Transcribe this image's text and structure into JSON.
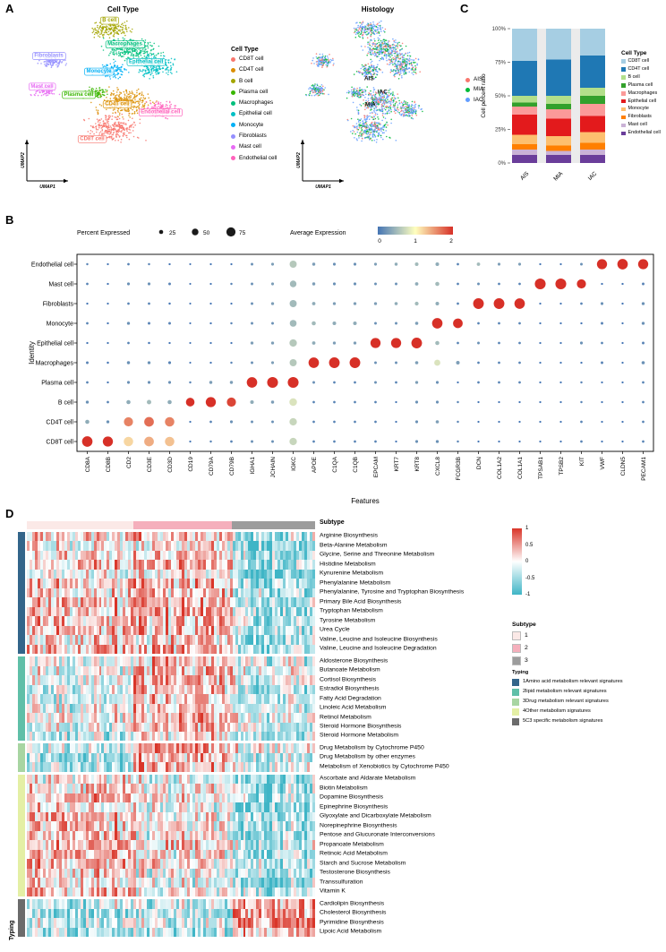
{
  "panels": {
    "a": "A",
    "b": "B",
    "c": "C",
    "d": "D"
  },
  "chart_data": [
    {
      "type": "scatter",
      "name": "umap-cell-type",
      "title": "Cell Type",
      "xlabel": "UMAP1",
      "ylabel": "UMAP2",
      "legend_title": "Cell Type",
      "clusters": [
        {
          "name": "CD8T cell",
          "color": "#F8766D",
          "cx": 0.44,
          "cy": 0.82,
          "rx": 0.13,
          "ry": 0.095,
          "n": 300,
          "lx": 0.33,
          "ly": 0.91
        },
        {
          "name": "CD4T cell",
          "color": "#DB8E00",
          "cx": 0.5,
          "cy": 0.63,
          "rx": 0.14,
          "ry": 0.1,
          "n": 320,
          "lx": 0.46,
          "ly": 0.655
        },
        {
          "name": "B cell",
          "color": "#A3A500",
          "cx": 0.42,
          "cy": 0.1,
          "rx": 0.105,
          "ry": 0.058,
          "n": 180,
          "lx": 0.42,
          "ly": 0.04
        },
        {
          "name": "Plasma cell",
          "color": "#39B600",
          "cx": 0.345,
          "cy": 0.565,
          "rx": 0.055,
          "ry": 0.04,
          "n": 90,
          "lx": 0.26,
          "ly": 0.585
        },
        {
          "name": "Macrophages",
          "color": "#00BF7D",
          "cx": 0.54,
          "cy": 0.245,
          "rx": 0.13,
          "ry": 0.088,
          "n": 310,
          "lx": 0.5,
          "ly": 0.215
        },
        {
          "name": "Epithelial cell",
          "color": "#00BFC4",
          "cx": 0.655,
          "cy": 0.37,
          "rx": 0.098,
          "ry": 0.088,
          "n": 230,
          "lx": 0.61,
          "ly": 0.345
        },
        {
          "name": "Monocyte",
          "color": "#00B0F6",
          "cx": 0.43,
          "cy": 0.4,
          "rx": 0.075,
          "ry": 0.055,
          "n": 140,
          "lx": 0.365,
          "ly": 0.415
        },
        {
          "name": "Fibroblasts",
          "color": "#9590FF",
          "cx": 0.125,
          "cy": 0.33,
          "rx": 0.065,
          "ry": 0.047,
          "n": 120,
          "lx": 0.105,
          "ly": 0.3
        },
        {
          "name": "Mast cell",
          "color": "#E76BF3",
          "cx": 0.085,
          "cy": 0.54,
          "rx": 0.06,
          "ry": 0.045,
          "n": 110,
          "lx": 0.07,
          "ly": 0.525
        },
        {
          "name": "Endothelial cell",
          "color": "#FF62BC",
          "cx": 0.69,
          "cy": 0.685,
          "rx": 0.082,
          "ry": 0.058,
          "n": 150,
          "lx": 0.685,
          "ly": 0.715
        }
      ]
    },
    {
      "type": "scatter",
      "name": "umap-histology",
      "title": "Histology",
      "xlabel": "UMAP1",
      "ylabel": "UMAP2",
      "groups": [
        {
          "name": "AIS",
          "color": "#F8766D",
          "weight": 0.2
        },
        {
          "name": "MIA",
          "color": "#00BA38",
          "weight": 0.26
        },
        {
          "name": "IAC",
          "color": "#619CFF",
          "weight": 0.54
        }
      ],
      "annotations": [
        {
          "text": "AIS",
          "x": 0.43,
          "y": 0.47
        },
        {
          "text": "IAC",
          "x": 0.52,
          "y": 0.57
        },
        {
          "text": "MIA",
          "x": 0.44,
          "y": 0.66
        }
      ]
    },
    {
      "type": "bar",
      "name": "cell-percent-ratio",
      "stacked": true,
      "categories": [
        "AIS",
        "MIA",
        "IAC"
      ],
      "ylabel": "Cell percent ratio",
      "ylim": [
        0,
        100
      ],
      "yticks": [
        "0%",
        "25%",
        "50%",
        "75%",
        "100%"
      ],
      "legend_title": "Cell Type",
      "series": [
        {
          "name": "CD8T cell",
          "color": "#A6CEE3",
          "values": [
            24,
            23,
            20
          ]
        },
        {
          "name": "CD4T cell",
          "color": "#1F78B4",
          "values": [
            26,
            27,
            24
          ]
        },
        {
          "name": "B cell",
          "color": "#B2DF8A",
          "values": [
            5,
            6,
            6
          ]
        },
        {
          "name": "Plasma cell",
          "color": "#33A02C",
          "values": [
            3,
            4,
            6
          ]
        },
        {
          "name": "Macrophages",
          "color": "#FB9A99",
          "values": [
            6,
            7,
            9
          ]
        },
        {
          "name": "Epithelial cell",
          "color": "#E31A1C",
          "values": [
            15,
            13,
            12
          ]
        },
        {
          "name": "Monocyte",
          "color": "#FDBF6F",
          "values": [
            7,
            7,
            8
          ]
        },
        {
          "name": "Fibroblasts",
          "color": "#FF7F00",
          "values": [
            4,
            4,
            5
          ]
        },
        {
          "name": "Mast cell",
          "color": "#CAB2D6",
          "values": [
            4,
            3,
            4
          ]
        },
        {
          "name": "Endothelial cell",
          "color": "#6A3D9A",
          "values": [
            6,
            6,
            6
          ]
        }
      ]
    },
    {
      "type": "dot",
      "name": "marker-gene-dotplot",
      "xlabel": "Features",
      "ylabel": "Identity",
      "size_legend": {
        "title": "Percent Expressed",
        "values": [
          25,
          50,
          75
        ]
      },
      "color_legend": {
        "title": "Average Expression",
        "ticks": [
          0,
          1,
          2
        ],
        "low": "#4575B4",
        "mid": "#FFFFBF",
        "high": "#D73027"
      },
      "genes": [
        "CD8A",
        "CD8B",
        "CD2",
        "CD3E",
        "CD3D",
        "CD19",
        "CD79A",
        "CD79B",
        "IGHA1",
        "JCHAIN",
        "IGKC",
        "APOE",
        "C1QA",
        "C1QB",
        "EPCAM",
        "KRT7",
        "KRT8",
        "CXCL8",
        "FCGR3B",
        "DCN",
        "COL1A2",
        "COL1A1",
        "TPSAB1",
        "TPSB2",
        "KIT",
        "VWF",
        "CLDN5",
        "PECAM1"
      ],
      "identities": [
        "Endothelial cell",
        "Mast cell",
        "Fibroblasts",
        "Monocyte",
        "Epithelial cell",
        "Macrophages",
        "Plasma cell",
        "B cell",
        "CD4T cell",
        "CD8T cell"
      ],
      "expression": [
        [
          0.1,
          0,
          0.1,
          0.1,
          0,
          0,
          0,
          0,
          0.2,
          0.3,
          0.6,
          0.3,
          0.2,
          0.2,
          0.3,
          0.4,
          0.5,
          0.4,
          0.1,
          0.5,
          0.3,
          0.3,
          0,
          0,
          0.2,
          2.2,
          2.3,
          2.2
        ],
        [
          0.1,
          0,
          0.2,
          0.2,
          0.1,
          0,
          0,
          0.1,
          0.2,
          0.3,
          0.5,
          0.3,
          0.2,
          0.2,
          0.2,
          0.2,
          0.4,
          0.5,
          0.1,
          0.2,
          0.1,
          0.1,
          2.4,
          2.4,
          2.0,
          0,
          0,
          0.1
        ],
        [
          0,
          0,
          0.1,
          0.1,
          0,
          0,
          0,
          0,
          0.2,
          0.3,
          0.5,
          0.4,
          0.3,
          0.3,
          0.3,
          0.4,
          0.5,
          0.4,
          0.1,
          2.4,
          2.4,
          2.4,
          0,
          0,
          0.1,
          0.2,
          0,
          0.2
        ],
        [
          0.1,
          0,
          0.2,
          0.1,
          0.1,
          0,
          0,
          0.1,
          0.2,
          0.2,
          0.5,
          0.5,
          0.4,
          0.4,
          0.2,
          0.2,
          0.3,
          2.3,
          2.2,
          0.1,
          0.1,
          0.1,
          0,
          0,
          0,
          0.1,
          0,
          0.2
        ],
        [
          0,
          0,
          0.1,
          0,
          0,
          0,
          0,
          0,
          0.3,
          0.3,
          0.6,
          0.4,
          0.3,
          0.3,
          2.2,
          2.2,
          2.3,
          0.5,
          0.1,
          0.2,
          0.1,
          0.1,
          0,
          0,
          0.2,
          0.1,
          0,
          0.1
        ],
        [
          0.1,
          0,
          0.2,
          0.2,
          0.1,
          0,
          0,
          0.1,
          0.2,
          0.3,
          0.6,
          2.2,
          2.4,
          2.4,
          0.2,
          0.2,
          0.3,
          0.8,
          0.3,
          0.1,
          0.1,
          0.1,
          0,
          0,
          0,
          0.1,
          0,
          0.2
        ],
        [
          0.1,
          0,
          0.2,
          0.2,
          0.2,
          0.1,
          0.3,
          0.3,
          2.2,
          2.4,
          2.4,
          0.2,
          0.1,
          0.1,
          0.2,
          0.1,
          0.3,
          0.2,
          0,
          0.1,
          0.1,
          0.1,
          0,
          0,
          0.1,
          0,
          0,
          0.1
        ],
        [
          0.2,
          0.1,
          0.4,
          0.5,
          0.4,
          2.1,
          2.3,
          1.9,
          0.4,
          0.3,
          0.8,
          0.1,
          0.1,
          0.1,
          0.1,
          0,
          0.2,
          0.2,
          0.1,
          0,
          0,
          0,
          0,
          0,
          0.1,
          0,
          0,
          0.1
        ],
        [
          0.4,
          0.2,
          1.6,
          1.7,
          1.6,
          0,
          0.1,
          0.2,
          0.2,
          0.2,
          0.7,
          0.1,
          0.1,
          0.1,
          0.1,
          0,
          0.2,
          0.3,
          0.1,
          0,
          0,
          0,
          0,
          0,
          0.1,
          0,
          0,
          0.1
        ],
        [
          2.4,
          2.3,
          1.2,
          1.4,
          1.3,
          0,
          0.1,
          0.1,
          0.2,
          0.2,
          0.7,
          0.1,
          0.1,
          0.1,
          0.1,
          0,
          0.2,
          0.2,
          0.1,
          0,
          0,
          0,
          0,
          0,
          0.1,
          0,
          0,
          0.1
        ]
      ],
      "percent": [
        [
          6,
          4,
          8,
          6,
          5,
          3,
          4,
          4,
          10,
          12,
          55,
          15,
          12,
          12,
          12,
          15,
          20,
          20,
          8,
          18,
          12,
          12,
          4,
          4,
          10,
          85,
          88,
          85
        ],
        [
          8,
          5,
          12,
          12,
          10,
          3,
          4,
          6,
          10,
          12,
          50,
          15,
          12,
          12,
          10,
          10,
          18,
          25,
          8,
          10,
          8,
          8,
          92,
          92,
          75,
          5,
          5,
          10
        ],
        [
          5,
          4,
          8,
          8,
          6,
          3,
          4,
          4,
          10,
          14,
          55,
          18,
          14,
          14,
          14,
          16,
          22,
          20,
          8,
          90,
          90,
          88,
          4,
          4,
          8,
          12,
          5,
          14
        ],
        [
          8,
          5,
          14,
          10,
          10,
          3,
          5,
          6,
          10,
          10,
          52,
          25,
          20,
          20,
          10,
          10,
          16,
          88,
          80,
          8,
          8,
          8,
          4,
          4,
          5,
          10,
          4,
          14
        ],
        [
          5,
          4,
          8,
          6,
          5,
          3,
          4,
          4,
          14,
          14,
          58,
          18,
          14,
          14,
          85,
          85,
          90,
          25,
          8,
          10,
          8,
          8,
          4,
          4,
          12,
          8,
          4,
          10
        ],
        [
          10,
          6,
          15,
          14,
          12,
          3,
          5,
          6,
          10,
          12,
          55,
          88,
          90,
          90,
          10,
          10,
          16,
          45,
          20,
          8,
          8,
          8,
          4,
          4,
          5,
          10,
          4,
          16
        ],
        [
          8,
          5,
          12,
          12,
          12,
          6,
          15,
          15,
          88,
          92,
          92,
          10,
          8,
          8,
          10,
          8,
          14,
          12,
          4,
          8,
          8,
          8,
          4,
          4,
          6,
          4,
          4,
          8
        ],
        [
          14,
          8,
          25,
          28,
          25,
          70,
          85,
          75,
          20,
          15,
          60,
          8,
          8,
          8,
          8,
          4,
          12,
          12,
          6,
          4,
          4,
          4,
          4,
          4,
          6,
          4,
          4,
          8
        ],
        [
          25,
          14,
          75,
          80,
          78,
          4,
          8,
          12,
          10,
          10,
          58,
          8,
          8,
          8,
          8,
          4,
          12,
          16,
          6,
          4,
          4,
          4,
          4,
          4,
          8,
          4,
          4,
          8
        ],
        [
          88,
          85,
          78,
          80,
          78,
          4,
          6,
          8,
          10,
          10,
          58,
          8,
          8,
          8,
          8,
          4,
          12,
          14,
          6,
          4,
          4,
          4,
          4,
          4,
          8,
          4,
          4,
          8
        ]
      ]
    },
    {
      "type": "heatmap",
      "name": "metabolism-signature-heatmap",
      "n_cols": 108,
      "seed": 11,
      "value_range": [
        -1,
        1
      ],
      "colors": {
        "positive": "#D93529",
        "zero": "#FFFFFF",
        "negative": "#3FB5C6"
      },
      "colorbar_ticks": [
        "1",
        "0.5",
        "0",
        "-0.5",
        "-1"
      ],
      "left_axis_label": "Typing",
      "col_annotation": {
        "title": "Subtype",
        "segments": [
          {
            "name": "1",
            "color": "#FBE9E7",
            "frac": 0.37
          },
          {
            "name": "2",
            "color": "#F5AFBC",
            "frac": 0.34
          },
          {
            "name": "3",
            "color": "#9C9C9C",
            "frac": 0.29
          }
        ]
      },
      "subtype_legend": {
        "title": "Subtype",
        "items": [
          {
            "label": "1",
            "color": "#FBE9E7"
          },
          {
            "label": "2",
            "color": "#F5AFBC"
          },
          {
            "label": "3",
            "color": "#9C9C9C"
          }
        ]
      },
      "typing_legend": {
        "title": "Typing",
        "items": [
          {
            "label": "1Amino acid metabolism relevant signatures",
            "color": "#33658A"
          },
          {
            "label": "2lipid metabolism relevant signatures",
            "color": "#5FBFA8"
          },
          {
            "label": "3Drug metabolism relevant signatures",
            "color": "#A8D5A2"
          },
          {
            "label": "4Other metabolism signatures",
            "color": "#E4EFA5"
          },
          {
            "label": "5C3 specific metabolism signatures",
            "color": "#6B6B6B"
          }
        ]
      },
      "row_groups": [
        {
          "color": "#33658A",
          "bias": [
            0.15,
            0.25,
            -0.5
          ],
          "rows": [
            "Arginine Biosynthesis",
            "Beta-Alanine Metabolism",
            "Glycine, Serine and Threonine Metabolism",
            "Histidine Metabolism",
            "Kynurenine Metabolism",
            "Phenylalanine Metabolism",
            "Phenylalanine, Tyrosine and Tryptophan Biosynthesis",
            "Primary Bile Acid Biosynthesis",
            "Tryptophan Metabolism",
            "Tyrosine Metabolism",
            "Urea Cycle",
            "Valine, Leucine and Isoleucine Biosynthesis",
            "Valine, Leucine and Isoleucine Degradation"
          ]
        },
        {
          "color": "#5FBFA8",
          "bias": [
            -0.15,
            0.3,
            -0.25
          ],
          "rows": [
            "Aldosterone Biosynthesis",
            "Butanoate Metabolism",
            "Cortisol Biosynthesis",
            "Estradiol Biosynthesis",
            "Fatty Acid Degradation",
            "Linoleic Acid Metabolism",
            "Retinol Metabolism",
            "Steroid Hormone Biosynthesis",
            "Steroid Hormone Metabolism"
          ]
        },
        {
          "color": "#A8D5A2",
          "bias": [
            -0.35,
            0.4,
            -0.15
          ],
          "rows": [
            "Drug Metabolism by Cytochrome P450",
            "Drug Metabolism by other enzymes",
            "Metabolism of Xenobiotics by Cytochrome P450"
          ]
        },
        {
          "color": "#E4EFA5",
          "bias": [
            0.25,
            0.05,
            -0.45
          ],
          "rows": [
            "Ascorbate and Aldarate Metabolism",
            "Biotin Metabolism",
            "Dopamine Biosynthesis",
            "Epinephrine Biosynthesis",
            "Glyoxylate and Dicarboxylate Metabolism",
            "Norepinephrine Biosynthesis",
            "Pentose and Glucuronate Interconversions",
            "Propanoate Metabolism",
            "Retinoic Acid Metabolism",
            "Starch and Sucrose Metabolism",
            "Testosterone Biosynthesis",
            "Transsulfuration",
            "Vitamin K"
          ]
        },
        {
          "color": "#6B6B6B",
          "bias": [
            -0.3,
            -0.2,
            0.5
          ],
          "rows": [
            "Cardiolipin Biosynthesis",
            "Cholesterol Biosynthesis",
            "Pyrimidine Biosynthesis",
            "Lipoic Acid Metabolism"
          ]
        }
      ]
    }
  ]
}
